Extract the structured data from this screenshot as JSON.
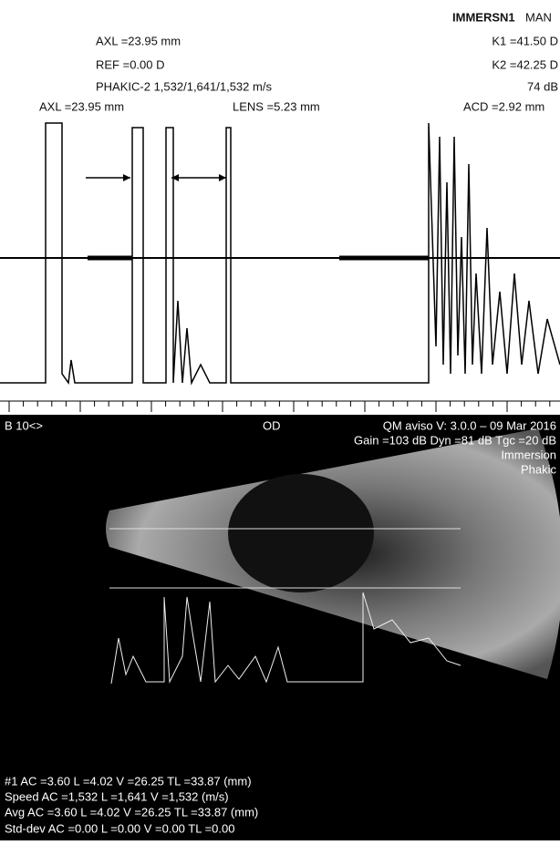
{
  "a_scan": {
    "mode": "IMMERSN1",
    "mode_suffix": "MAN",
    "left_info": [
      "AXL =23.95 mm",
      "REF =0.00 D",
      "PHAKIC-2 1,532/1,641/1,532 m/s"
    ],
    "right_info": [
      "K1 =41.50 D",
      "K2 =42.25 D",
      "74 dB"
    ],
    "measures": [
      "AXL =23.95 mm",
      "LENS =5.23 mm",
      "ACD =2.92 mm"
    ]
  },
  "b_scan": {
    "probe": "B 10<>",
    "eye": "OD",
    "version": "QM aviso V: 3.0.0 – 09 Mar 2016",
    "settings": "Gain =103 dB Dyn =81 dB Tgc =20 dB",
    "mode": "Immersion",
    "lens": "Phakic",
    "results": [
      "#1 AC =3.60 L =4.02 V =26.25 TL =33.87 (mm)",
      "Speed AC =1,532 L =1,641 V =1,532 (m/s)",
      "Avg AC =3.60 L =4.02 V =26.25 TL =33.87 (mm)",
      "Std-dev AC =0.00 L =0.00 V =0.00 TL =0.00"
    ]
  }
}
